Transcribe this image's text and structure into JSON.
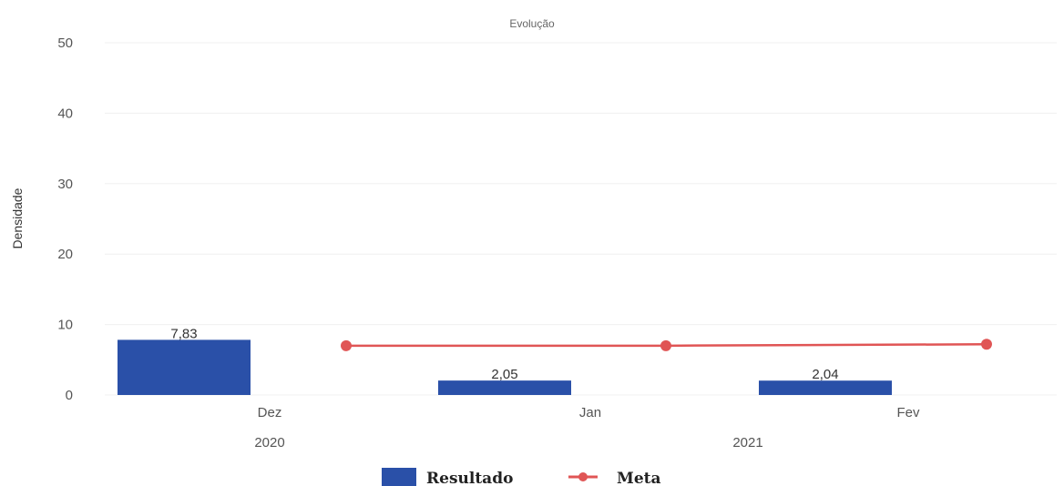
{
  "chart_data": {
    "type": "bar",
    "title": "Evolução",
    "ylabel": "Densidade",
    "ylim": [
      0,
      50
    ],
    "yticks": [
      0,
      10,
      20,
      30,
      40,
      50
    ],
    "categories": [
      "Dez",
      "Jan",
      "Fev"
    ],
    "years": [
      {
        "label": "2020",
        "span": [
          0,
          0
        ]
      },
      {
        "label": "2021",
        "span": [
          1,
          2
        ]
      }
    ],
    "series": [
      {
        "name": "Resultado",
        "type": "bar",
        "values": [
          7.83,
          2.05,
          2.04
        ],
        "labels": [
          "7,83",
          "2,05",
          "2,04"
        ],
        "color": "#2a50a8"
      },
      {
        "name": "Meta",
        "type": "line",
        "values": [
          7.0,
          7.0,
          7.2
        ],
        "color": "#e05555"
      }
    ],
    "grid": true,
    "legend_position": "bottom-center"
  }
}
